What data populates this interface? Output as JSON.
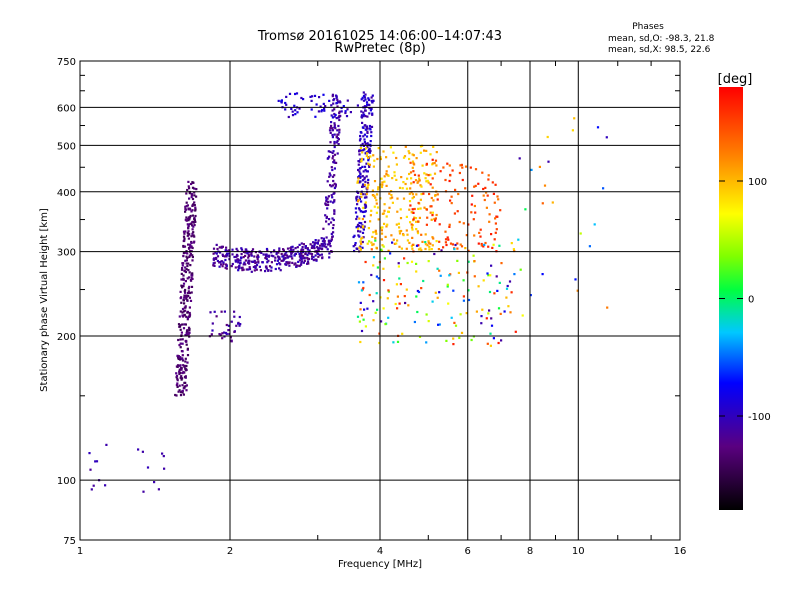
{
  "chart_data": {
    "type": "scatter",
    "title": "Tromsø 20161025 14:06:00–14:07:43",
    "subtitle": "RwPretec (8p)",
    "xlabel": "Frequency [MHz]",
    "ylabel": "Stationary phase Virtual Height [km]",
    "xscale": "log",
    "yscale": "log",
    "xlim": [
      1,
      16
    ],
    "ylim": [
      75,
      750
    ],
    "x_ticks": [
      1,
      2,
      4,
      6,
      8,
      10,
      16
    ],
    "x_tick_labels": [
      "1",
      "2",
      "4",
      "6",
      "8",
      "10",
      "16"
    ],
    "y_ticks": [
      75,
      100,
      200,
      300,
      400,
      500,
      600,
      750
    ],
    "y_tick_labels": [
      "75",
      "100",
      "200",
      "300",
      "400",
      "500",
      "600",
      "750"
    ],
    "grid": true,
    "phases_box": {
      "heading": "Phases",
      "line_o": "mean, sd,O:  -98.3, 21.8",
      "line_x": "mean, sd,X:  98.5, 22.6"
    },
    "colorbar": {
      "label": "[deg]",
      "range": [
        -180,
        180
      ],
      "ticks": [
        100,
        0,
        -100
      ],
      "tick_labels": [
        "100",
        "0",
        "-100"
      ]
    },
    "colors": {
      "grid": "#000000",
      "frame": "#000000"
    },
    "clusters": [
      {
        "note": "F-layer o-trace horizontal",
        "freq": [
          1.85,
          3.1
        ],
        "height": [
          272,
          330
        ],
        "phase": [
          -130,
          -95
        ],
        "n": 360,
        "shape": "hband"
      },
      {
        "note": "Low F rise",
        "freq": [
          1.55,
          1.72
        ],
        "height": [
          150,
          420
        ],
        "phase": [
          -145,
          -120
        ],
        "n": 340,
        "shape": "vband"
      },
      {
        "note": "F2 cusp vertical",
        "freq": [
          3.05,
          3.35
        ],
        "height": [
          290,
          640
        ],
        "phase": [
          -125,
          -100
        ],
        "n": 150,
        "shape": "vband"
      },
      {
        "note": "Upper cusp",
        "freq": [
          3.5,
          3.9
        ],
        "height": [
          300,
          640
        ],
        "phase": [
          -115,
          -85
        ],
        "n": 200,
        "shape": "vband"
      },
      {
        "note": "Top branch",
        "freq": [
          2.5,
          3.9
        ],
        "height": [
          570,
          645
        ],
        "phase": [
          -110,
          -80
        ],
        "n": 70,
        "shape": "box"
      },
      {
        "note": "Bottom E echoes",
        "freq": [
          1.0,
          1.5
        ],
        "height": [
          92,
          125
        ],
        "phase": [
          -120,
          -100
        ],
        "n": 18,
        "shape": "box"
      },
      {
        "note": "Small scatter near 200km",
        "freq": [
          1.8,
          2.1
        ],
        "height": [
          195,
          225
        ],
        "phase": [
          -130,
          -100
        ],
        "n": 35,
        "shape": "box"
      },
      {
        "note": "x-trace yellow",
        "freq": [
          3.6,
          5.2
        ],
        "height": [
          300,
          500
        ],
        "phase": [
          80,
          120
        ],
        "n": 260,
        "shape": "box"
      },
      {
        "note": "x-trace orange",
        "freq": [
          4.6,
          7.0
        ],
        "height": [
          300,
          470
        ],
        "phase": [
          120,
          175
        ],
        "n": 140,
        "shape": "box"
      },
      {
        "note": "diffuse spread",
        "freq": [
          3.6,
          7.5
        ],
        "height": [
          190,
          320
        ],
        "phase": [
          -120,
          170
        ],
        "n": 180,
        "shape": "box"
      },
      {
        "note": "far scatter",
        "freq": [
          7.5,
          11.5
        ],
        "height": [
          200,
          650
        ],
        "phase": [
          -110,
          140
        ],
        "n": 25,
        "shape": "box"
      }
    ]
  }
}
